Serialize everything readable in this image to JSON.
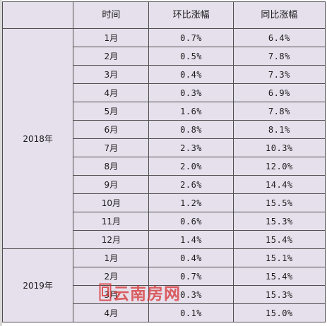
{
  "table": {
    "headers": [
      "",
      "时间",
      "环比涨幅",
      "同比涨幅"
    ],
    "groups": [
      {
        "year": "2018年",
        "rows": [
          {
            "month": "1月",
            "mom": "0.7%",
            "yoy": "6.4%"
          },
          {
            "month": "2月",
            "mom": "0.5%",
            "yoy": "7.8%"
          },
          {
            "month": "3月",
            "mom": "0.4%",
            "yoy": "7.3%"
          },
          {
            "month": "4月",
            "mom": "0.3%",
            "yoy": "6.9%"
          },
          {
            "month": "5月",
            "mom": "1.6%",
            "yoy": "7.8%"
          },
          {
            "month": "6月",
            "mom": "0.8%",
            "yoy": "8.1%"
          },
          {
            "month": "7月",
            "mom": "2.3%",
            "yoy": "10.3%"
          },
          {
            "month": "8月",
            "mom": "2.0%",
            "yoy": "12.0%"
          },
          {
            "month": "9月",
            "mom": "2.6%",
            "yoy": "14.4%"
          },
          {
            "month": "10月",
            "mom": "1.2%",
            "yoy": "15.5%"
          },
          {
            "month": "11月",
            "mom": "0.6%",
            "yoy": "15.3%"
          },
          {
            "month": "12月",
            "mom": "1.4%",
            "yoy": "15.4%"
          }
        ]
      },
      {
        "year": "2019年",
        "rows": [
          {
            "month": "1月",
            "mom": "0.4%",
            "yoy": "15.1%"
          },
          {
            "month": "2月",
            "mom": "0.7%",
            "yoy": "15.4%"
          },
          {
            "month": "3月",
            "mom": "0.3%",
            "yoy": "15.3%"
          },
          {
            "month": "4月",
            "mom": "0.1%",
            "yoy": "15.0%"
          }
        ]
      }
    ]
  },
  "watermark": {
    "text": "云南房网",
    "color": "#d62828",
    "icon": "window-logo-icon"
  },
  "colors": {
    "cell_background": "#e6e0ec",
    "border": "#4d4d4d"
  }
}
